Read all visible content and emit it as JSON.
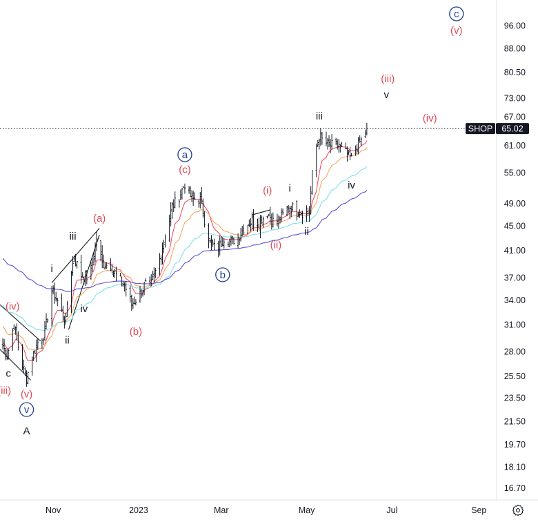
{
  "chart_data": {
    "type": "candlestick",
    "symbol": "SHOP",
    "last_price": "65.02",
    "yscale": "log",
    "ylim": [
      15.9,
      106
    ],
    "x_start": "2022-09-24",
    "x_end": "2023-09-23",
    "y_ticks": [
      "96.00",
      "88.00",
      "80.50",
      "73.00",
      "67.00",
      "61.00",
      "55.00",
      "49.00",
      "45.00",
      "41.00",
      "37.00",
      "34.00",
      "31.00",
      "28.00",
      "25.50",
      "23.50",
      "21.50",
      "19.70",
      "18.10",
      "16.70"
    ],
    "x_ticks": [
      {
        "label": "Nov",
        "date": "2022-11-01"
      },
      {
        "label": "2023",
        "date": "2023-01-01"
      },
      {
        "label": "Mar",
        "date": "2023-03-01"
      },
      {
        "label": "May",
        "date": "2023-05-01"
      },
      {
        "label": "Jul",
        "date": "2023-07-01"
      },
      {
        "label": "Sep",
        "date": "2023-09-01"
      }
    ],
    "closes": [
      [
        "2022-09-24",
        29.4
      ],
      [
        "2022-09-29",
        27.5
      ],
      [
        "2022-10-04",
        31.0
      ],
      [
        "2022-10-09",
        27.0
      ],
      [
        "2022-10-13",
        25.3
      ],
      [
        "2022-10-16",
        27.0
      ],
      [
        "2022-10-21",
        29.0
      ],
      [
        "2022-10-26",
        30.0
      ],
      [
        "2022-10-31",
        35.3
      ],
      [
        "2022-11-05",
        33.5
      ],
      [
        "2022-11-10",
        31.3
      ],
      [
        "2022-11-12",
        36.0
      ],
      [
        "2022-11-16",
        40.0
      ],
      [
        "2022-11-21",
        37.3
      ],
      [
        "2022-11-27",
        37.0
      ],
      [
        "2022-12-02",
        43.0
      ],
      [
        "2022-12-06",
        39.0
      ],
      [
        "2022-12-12",
        38.7
      ],
      [
        "2022-12-17",
        37.0
      ],
      [
        "2022-12-22",
        36.0
      ],
      [
        "2022-12-27",
        33.5
      ],
      [
        "2023-01-01",
        34.4
      ],
      [
        "2023-01-05",
        36.0
      ],
      [
        "2023-01-10",
        36.0
      ],
      [
        "2023-01-16",
        39.7
      ],
      [
        "2023-01-20",
        43.5
      ],
      [
        "2023-01-25",
        48.5
      ],
      [
        "2023-01-29",
        49.7
      ],
      [
        "2023-02-03",
        52.8
      ],
      [
        "2023-02-08",
        49.7
      ],
      [
        "2023-02-14",
        49.7
      ],
      [
        "2023-02-18",
        45.0
      ],
      [
        "2023-02-21",
        42.2
      ],
      [
        "2023-02-26",
        41.0
      ],
      [
        "2023-03-03",
        43.0
      ],
      [
        "2023-03-08",
        42.5
      ],
      [
        "2023-03-13",
        43.0
      ],
      [
        "2023-03-18",
        45.0
      ],
      [
        "2023-03-23",
        45.9
      ],
      [
        "2023-03-28",
        45.5
      ],
      [
        "2023-04-03",
        47.3
      ],
      [
        "2023-04-08",
        45.5
      ],
      [
        "2023-04-13",
        46.5
      ],
      [
        "2023-04-18",
        48.5
      ],
      [
        "2023-04-23",
        48.0
      ],
      [
        "2023-04-28",
        47.3
      ],
      [
        "2023-05-03",
        47.3
      ],
      [
        "2023-05-06",
        58.6
      ],
      [
        "2023-05-10",
        63.0
      ],
      [
        "2023-05-14",
        61.7
      ],
      [
        "2023-05-18",
        61.0
      ],
      [
        "2023-05-23",
        61.0
      ],
      [
        "2023-05-28",
        59.6
      ],
      [
        "2023-06-02",
        58.0
      ],
      [
        "2023-06-06",
        61.0
      ],
      [
        "2023-06-10",
        62.5
      ],
      [
        "2023-06-13",
        65.02
      ]
    ],
    "moving_averages": [
      {
        "name": "EMA fast",
        "period": 10,
        "seed": 29.0,
        "color": "#f05060"
      },
      {
        "name": "EMA mid",
        "period": 21,
        "seed": 31.0,
        "color": "#f5a862"
      },
      {
        "name": "EMA slow",
        "period": 50,
        "seed": 33.5,
        "color": "#7fe0e8"
      },
      {
        "name": "EMA long",
        "period": 100,
        "seed": 40.0,
        "color": "#5b4fd6"
      }
    ],
    "trendlines": [
      [
        [
          "2022-09-24",
          33.4
        ],
        [
          "2022-10-23",
          29.1
        ]
      ],
      [
        [
          "2022-09-24",
          28.2
        ],
        [
          "2022-10-16",
          25.1
        ]
      ],
      [
        [
          "2022-10-31",
          36.3
        ],
        [
          "2022-12-04",
          44.6
        ]
      ],
      [
        [
          "2022-11-12",
          30.4
        ],
        [
          "2022-12-04",
          43.5
        ]
      ],
      [
        [
          "2023-03-23",
          46.9
        ],
        [
          "2023-04-05",
          47.8
        ]
      ]
    ],
    "annotations": [
      {
        "text": "c",
        "date": "2023-08-16",
        "price": 100.3,
        "color": "#1e3f8f",
        "circled": true
      },
      {
        "text": "(v)",
        "date": "2023-08-16",
        "price": 94.7,
        "color": "#e04a55"
      },
      {
        "text": "(iii)",
        "date": "2023-06-28",
        "price": 78.5,
        "color": "#e04a55"
      },
      {
        "text": "v",
        "date": "2023-06-27",
        "price": 74.7,
        "color": "#131722"
      },
      {
        "text": "(iv)",
        "date": "2023-07-28",
        "price": 67.6,
        "color": "#e04a55"
      },
      {
        "text": "iii",
        "date": "2023-05-10",
        "price": 68.2,
        "color": "#131722"
      },
      {
        "text": "iv",
        "date": "2023-06-02",
        "price": 52.5,
        "color": "#131722"
      },
      {
        "text": "i",
        "date": "2023-04-19",
        "price": 51.9,
        "color": "#131722"
      },
      {
        "text": "(i)",
        "date": "2023-04-03",
        "price": 51.5,
        "color": "#e04a55"
      },
      {
        "text": "ii",
        "date": "2023-05-01",
        "price": 44.1,
        "color": "#131722"
      },
      {
        "text": "(ii)",
        "date": "2023-04-09",
        "price": 41.9,
        "color": "#e04a55"
      },
      {
        "text": "a",
        "date": "2023-02-03",
        "price": 58.9,
        "color": "#1e3f8f",
        "circled": true
      },
      {
        "text": "(c)",
        "date": "2023-02-03",
        "price": 56.4,
        "color": "#e04a55"
      },
      {
        "text": "b",
        "date": "2023-03-02",
        "price": 37.4,
        "color": "#1e3f8f",
        "circled": true
      },
      {
        "text": "(b)",
        "date": "2022-12-30",
        "price": 30.2,
        "color": "#e04a55"
      },
      {
        "text": "(a)",
        "date": "2022-12-04",
        "price": 46.3,
        "color": "#e04a55"
      },
      {
        "text": "iii",
        "date": "2022-11-15",
        "price": 43.3,
        "color": "#131722"
      },
      {
        "text": "i",
        "date": "2022-10-31",
        "price": 38.3,
        "color": "#131722"
      },
      {
        "text": "iv",
        "date": "2022-11-23",
        "price": 32.9,
        "color": "#131722"
      },
      {
        "text": "ii",
        "date": "2022-11-11",
        "price": 29.2,
        "color": "#131722"
      },
      {
        "text": "(iv)",
        "date": "2022-10-03",
        "price": 33.2,
        "color": "#e04a55"
      },
      {
        "text": "c",
        "date": "2022-09-30",
        "price": 25.3,
        "color": "#131722"
      },
      {
        "text": "(iii)",
        "date": "2022-09-27",
        "price": 24.6,
        "color": "#e04a55"
      },
      {
        "text": "(v)",
        "date": "2022-10-13",
        "price": 23.4,
        "color": "#e04a55"
      },
      {
        "text": "v",
        "date": "2022-10-13",
        "price": 22.7,
        "color": "#1e3f8f",
        "circled": true
      },
      {
        "text": "A",
        "date": "2022-10-13",
        "price": 21.0,
        "color": "#131722",
        "large": true
      }
    ]
  },
  "icons": {
    "settings": "gear-icon"
  }
}
